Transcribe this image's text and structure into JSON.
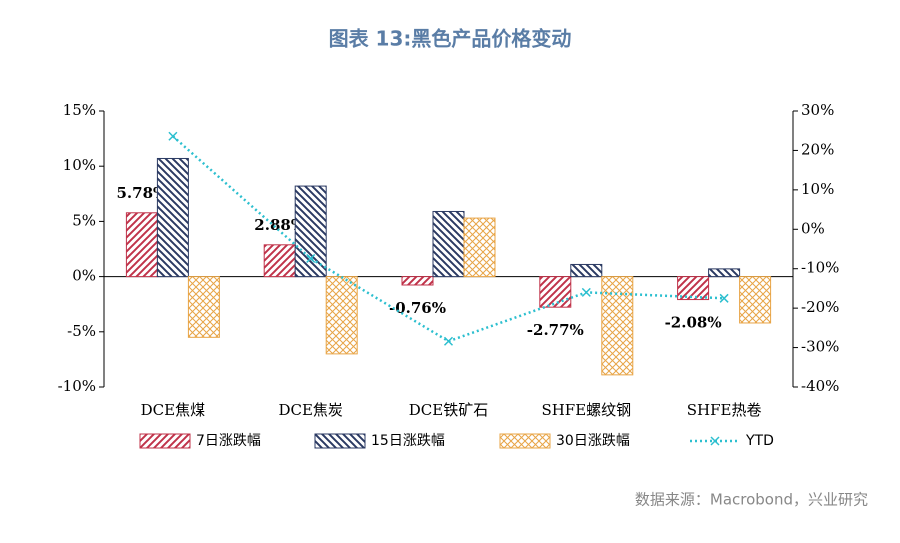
{
  "chart_data": {
    "type": "bar",
    "title": "图表 13:黑色产品价格变动",
    "source": "数据来源：Macrobond，兴业研究",
    "categories": [
      "DCE焦煤",
      "DCE焦炭",
      "DCE铁矿石",
      "SHFE螺纹钢",
      "SHFE热卷"
    ],
    "series": [
      {
        "name": "7日涨跌幅",
        "color": "#c0334a",
        "values": [
          5.78,
          2.88,
          -0.76,
          -2.77,
          -2.08
        ],
        "value_labels": [
          "5.78%",
          "2.88%",
          "-0.76%",
          "-2.77%",
          "-2.08%"
        ]
      },
      {
        "name": "15日涨跌幅",
        "color": "#2b3a63",
        "values": [
          10.7,
          8.2,
          5.9,
          1.1,
          0.7
        ]
      },
      {
        "name": "30日涨跌幅",
        "color": "#e8a445",
        "values": [
          -5.5,
          -7.0,
          5.3,
          -8.9,
          -4.2
        ]
      },
      {
        "name": "YTD",
        "type": "line",
        "axis": "y2",
        "color": "#2cbfcf",
        "values": [
          23.6,
          -7.4,
          -28.4,
          -16,
          -17.5
        ]
      }
    ],
    "ylim": [
      -10,
      15
    ],
    "yticks": [
      {
        "value": -10,
        "label": "-10%"
      },
      {
        "value": -5,
        "label": "-5%"
      },
      {
        "value": 0,
        "label": "0%"
      },
      {
        "value": 5,
        "label": "5%"
      },
      {
        "value": 10,
        "label": "10%"
      },
      {
        "value": 15,
        "label": "15%"
      }
    ],
    "y2lim": [
      -40,
      30
    ],
    "y2ticks": [
      {
        "value": -40,
        "label": "-40%"
      },
      {
        "value": -30,
        "label": "-30%"
      },
      {
        "value": -20,
        "label": "-20%"
      },
      {
        "value": -10,
        "label": "-10%"
      },
      {
        "value": 0,
        "label": "0%"
      },
      {
        "value": 10,
        "label": "10%"
      },
      {
        "value": 20,
        "label": "20%"
      },
      {
        "value": 30,
        "label": "30%"
      }
    ],
    "grid": false,
    "legend": "bottom"
  }
}
